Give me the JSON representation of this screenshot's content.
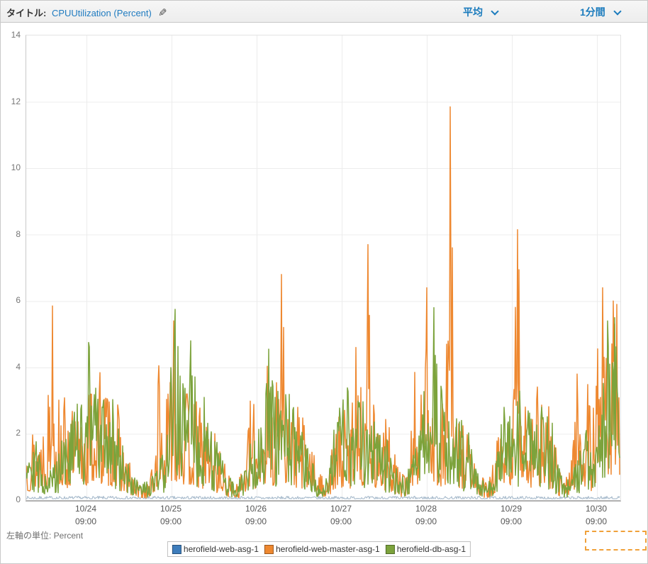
{
  "header": {
    "title_label": "タイトル:",
    "title_value": "CPUUtilization (Percent)",
    "statistic_dropdown_value": "平均",
    "period_dropdown_value": "1分間"
  },
  "axis": {
    "unit_label": "左軸の単位: Percent"
  },
  "legend": {
    "items": [
      {
        "label": "herofield-web-asg-1",
        "color": "#3e7dbc"
      },
      {
        "label": "herofield-web-master-asg-1",
        "color": "#ee8830"
      },
      {
        "label": "herofield-db-asg-1",
        "color": "#7ca33c"
      }
    ]
  },
  "selection_box": {
    "visible": true,
    "color": "#f0a13a"
  },
  "chart_data": {
    "type": "line",
    "title": "",
    "ylabel": "Percent",
    "ylim": [
      0,
      14
    ],
    "y_ticks": [
      0,
      2,
      4,
      6,
      8,
      10,
      12,
      14
    ],
    "grid": true,
    "legend_position": "bottom",
    "x_window_hours": 167.6,
    "x_start_label": "10/23 16:00",
    "x_ticks": [
      {
        "hour": 17,
        "date": "10/24",
        "time": "09:00"
      },
      {
        "hour": 41,
        "date": "10/25",
        "time": "09:00"
      },
      {
        "hour": 65,
        "date": "10/26",
        "time": "09:00"
      },
      {
        "hour": 89,
        "date": "10/27",
        "time": "09:00"
      },
      {
        "hour": 113,
        "date": "10/28",
        "time": "09:00"
      },
      {
        "hour": 137,
        "date": "10/29",
        "time": "09:00"
      },
      {
        "hour": 161,
        "date": "10/30",
        "time": "09:00"
      }
    ],
    "series": [
      {
        "name": "herofield-web-asg-1",
        "color": "#a9bccd",
        "legend_color": "#3e7dbc",
        "stroke_width": 1.1,
        "seed": 7,
        "noise_power": 1.2,
        "envelope": [
          [
            0,
            0.12
          ],
          [
            167.6,
            0.12
          ]
        ],
        "peaks": []
      },
      {
        "name": "herofield-web-master-asg-1",
        "color": "#ee8830",
        "legend_color": "#ee8830",
        "stroke_width": 1.5,
        "seed": 13,
        "noise_power": 1.6,
        "envelope": [
          [
            0,
            2.2
          ],
          [
            2,
            2.4
          ],
          [
            4,
            2.6
          ],
          [
            6,
            3.2
          ],
          [
            7.4,
            5.85
          ],
          [
            9,
            3.4
          ],
          [
            12,
            2.9
          ],
          [
            15,
            2.6
          ],
          [
            17,
            3.4
          ],
          [
            19,
            3.8
          ],
          [
            21,
            4.1
          ],
          [
            23,
            3.6
          ],
          [
            25,
            3.4
          ],
          [
            27,
            2.2
          ],
          [
            29,
            1.2
          ],
          [
            31,
            0.6
          ],
          [
            34,
            0.5
          ],
          [
            36,
            1.2
          ],
          [
            37.4,
            4.05
          ],
          [
            39,
            2.4
          ],
          [
            41.5,
            5.4
          ],
          [
            43,
            4.2
          ],
          [
            45,
            3.4
          ],
          [
            47,
            3.3
          ],
          [
            49,
            2.9
          ],
          [
            51,
            2.6
          ],
          [
            53,
            2.2
          ],
          [
            55,
            1.4
          ],
          [
            57,
            0.8
          ],
          [
            60,
            0.7
          ],
          [
            62,
            1.6
          ],
          [
            63.4,
            3.3
          ],
          [
            65,
            2.6
          ],
          [
            66.5,
            3.3
          ],
          [
            68.4,
            4.5
          ],
          [
            70,
            3.4
          ],
          [
            72,
            6.8
          ],
          [
            73.5,
            3.7
          ],
          [
            75,
            3.3
          ],
          [
            77,
            2.9
          ],
          [
            79,
            2.4
          ],
          [
            81,
            1.5
          ],
          [
            83,
            0.8
          ],
          [
            85,
            1.0
          ],
          [
            87,
            2.0
          ],
          [
            89,
            3.0
          ],
          [
            91,
            2.6
          ],
          [
            93,
            4.6
          ],
          [
            95,
            3.2
          ],
          [
            96.4,
            7.7
          ],
          [
            98,
            3.0
          ],
          [
            100,
            2.4
          ],
          [
            102,
            2.5
          ],
          [
            104,
            1.6
          ],
          [
            106,
            0.8
          ],
          [
            108,
            1.2
          ],
          [
            109.6,
            3.85
          ],
          [
            111,
            2.6
          ],
          [
            113,
            6.4
          ],
          [
            114.5,
            5.4
          ],
          [
            116,
            3.4
          ],
          [
            118,
            2.7
          ],
          [
            119.6,
            11.85
          ],
          [
            121,
            2.6
          ],
          [
            123,
            2.9
          ],
          [
            125,
            2.4
          ],
          [
            127,
            1.0
          ],
          [
            130,
            0.5
          ],
          [
            132,
            1.2
          ],
          [
            133,
            2.3
          ],
          [
            135,
            1.8
          ],
          [
            137,
            3.6
          ],
          [
            138.6,
            8.15
          ],
          [
            140,
            4.1
          ],
          [
            142,
            3.0
          ],
          [
            144,
            4.1
          ],
          [
            146,
            2.9
          ],
          [
            148,
            2.8
          ],
          [
            150,
            1.2
          ],
          [
            152,
            0.6
          ],
          [
            154,
            1.9
          ],
          [
            155.4,
            3.8
          ],
          [
            157,
            2.3
          ],
          [
            158,
            4.2
          ],
          [
            159.5,
            2.2
          ],
          [
            161,
            4.8
          ],
          [
            162,
            5.5
          ],
          [
            162.6,
            6.4
          ],
          [
            163.5,
            5.3
          ],
          [
            164.5,
            4.6
          ],
          [
            165.5,
            6.0
          ],
          [
            166.5,
            5.9
          ],
          [
            167.2,
            3.5
          ],
          [
            167.6,
            2.1
          ]
        ],
        "peaks": [
          [
            7.4,
            5.85
          ],
          [
            37.4,
            4.05
          ],
          [
            41.5,
            5.4
          ],
          [
            72,
            6.8
          ],
          [
            93,
            4.6
          ],
          [
            96.4,
            7.7
          ],
          [
            109.6,
            3.85
          ],
          [
            113,
            6.4
          ],
          [
            119.6,
            11.85
          ],
          [
            138.6,
            8.15
          ],
          [
            155.4,
            3.8
          ],
          [
            162.6,
            6.4
          ],
          [
            165.5,
            6.0
          ],
          [
            166.5,
            5.9
          ]
        ]
      },
      {
        "name": "herofield-db-asg-1",
        "color": "#7ca33c",
        "legend_color": "#7ca33c",
        "stroke_width": 1.5,
        "seed": 29,
        "noise_power": 1.15,
        "envelope": [
          [
            0,
            3.1
          ],
          [
            1,
            2.6
          ],
          [
            2,
            2.2
          ],
          [
            3.5,
            1.5
          ],
          [
            5,
            1.2
          ],
          [
            7,
            1.0
          ],
          [
            9,
            1.6
          ],
          [
            10,
            2.9
          ],
          [
            12,
            2.2
          ],
          [
            14,
            3.3
          ],
          [
            16,
            3.0
          ],
          [
            17.6,
            4.75
          ],
          [
            19,
            3.9
          ],
          [
            21,
            3.3
          ],
          [
            23,
            3.5
          ],
          [
            25,
            3.0
          ],
          [
            27,
            2.0
          ],
          [
            29,
            1.0
          ],
          [
            32,
            0.5
          ],
          [
            35,
            0.6
          ],
          [
            38,
            1.3
          ],
          [
            40,
            2.6
          ],
          [
            41.5,
            5.3
          ],
          [
            42,
            5.75
          ],
          [
            43.5,
            4.2
          ],
          [
            45,
            3.6
          ],
          [
            46.4,
            4.8
          ],
          [
            48,
            3.4
          ],
          [
            50,
            3.2
          ],
          [
            52,
            2.7
          ],
          [
            54,
            1.9
          ],
          [
            56,
            1.0
          ],
          [
            58,
            0.6
          ],
          [
            60,
            0.6
          ],
          [
            62,
            1.3
          ],
          [
            63.4,
            2.0
          ],
          [
            65,
            2.6
          ],
          [
            67,
            3.2
          ],
          [
            68.4,
            4.55
          ],
          [
            70,
            3.1
          ],
          [
            72,
            3.6
          ],
          [
            74,
            3.3
          ],
          [
            76,
            2.6
          ],
          [
            78,
            2.0
          ],
          [
            80,
            1.5
          ],
          [
            82,
            0.8
          ],
          [
            84,
            0.6
          ],
          [
            86,
            1.6
          ],
          [
            88,
            3.0
          ],
          [
            90,
            3.5
          ],
          [
            92,
            3.2
          ],
          [
            93.5,
            3.4
          ],
          [
            95,
            3.0
          ],
          [
            96.4,
            2.8
          ],
          [
            98,
            3.4
          ],
          [
            100,
            2.2
          ],
          [
            102,
            1.8
          ],
          [
            104,
            1.1
          ],
          [
            106,
            0.7
          ],
          [
            108,
            1.1
          ],
          [
            110,
            2.2
          ],
          [
            111,
            3.5
          ],
          [
            113,
            3.5
          ],
          [
            114,
            4.8
          ],
          [
            115,
            5.8
          ],
          [
            116.4,
            3.8
          ],
          [
            118,
            3.2
          ],
          [
            119.6,
            2.3
          ],
          [
            121,
            2.6
          ],
          [
            123,
            2.4
          ],
          [
            125,
            2.0
          ],
          [
            127,
            0.9
          ],
          [
            130,
            0.5
          ],
          [
            132,
            0.9
          ],
          [
            134,
            2.4
          ],
          [
            135,
            3.1
          ],
          [
            137,
            2.9
          ],
          [
            139,
            3.4
          ],
          [
            141,
            2.6
          ],
          [
            143,
            3.2
          ],
          [
            145,
            3.0
          ],
          [
            147,
            2.9
          ],
          [
            148.5,
            2.3
          ],
          [
            150,
            1.1
          ],
          [
            152,
            0.5
          ],
          [
            154,
            0.8
          ],
          [
            156,
            1.6
          ],
          [
            158,
            2.4
          ],
          [
            160,
            2.3
          ],
          [
            161.5,
            2.9
          ],
          [
            163,
            3.8
          ],
          [
            164,
            5.4
          ],
          [
            165,
            4.2
          ],
          [
            166,
            5.5
          ],
          [
            167,
            3.6
          ],
          [
            167.6,
            2.2
          ]
        ],
        "peaks": [
          [
            17.6,
            4.75
          ],
          [
            42,
            5.75
          ],
          [
            46.4,
            4.8
          ],
          [
            68.4,
            4.55
          ],
          [
            115,
            5.8
          ],
          [
            164,
            5.4
          ],
          [
            166,
            5.5
          ]
        ]
      }
    ]
  }
}
